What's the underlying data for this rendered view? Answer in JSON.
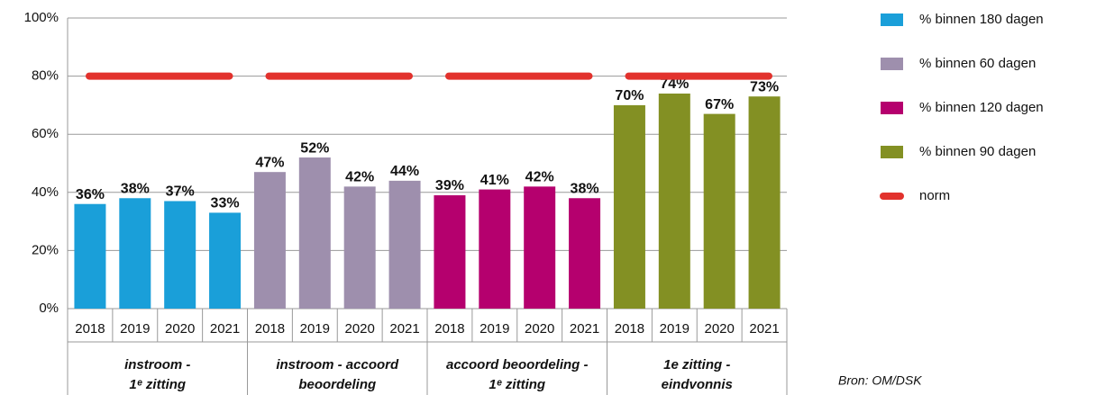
{
  "chart_data": {
    "type": "grouped_bar",
    "categories": [
      "2018",
      "2019",
      "2020",
      "2021"
    ],
    "series": [
      {
        "name": "% binnen 180 dagen",
        "color": "#1a9fd9",
        "group": [
          "instroom -",
          "1ᵉ zitting"
        ],
        "values": [
          36,
          38,
          37,
          33
        ],
        "value_labels": [
          "36%",
          "38%",
          "37%",
          "33%"
        ]
      },
      {
        "name": "% binnen 60 dagen",
        "color": "#9e8fad",
        "group": [
          "instroom - accoord",
          "beoordeling"
        ],
        "values": [
          47,
          52,
          42,
          44
        ],
        "value_labels": [
          "47%",
          "52%",
          "42%",
          "44%"
        ]
      },
      {
        "name": "% binnen 120 dagen",
        "color": "#b5006e",
        "group": [
          "accoord beoordeling -",
          "1ᵉ zitting"
        ],
        "values": [
          39,
          41,
          42,
          38
        ],
        "value_labels": [
          "39%",
          "41%",
          "42%",
          "38%"
        ]
      },
      {
        "name": "% binnen 90 dagen",
        "color": "#839023",
        "group": [
          "1e zitting -",
          "eindvonnis"
        ],
        "values": [
          70,
          74,
          67,
          73
        ],
        "value_labels": [
          "70%",
          "74%",
          "67%",
          "73%"
        ]
      }
    ],
    "norm": {
      "name": "norm",
      "color": "#e2322d",
      "values": [
        80,
        80,
        80,
        80
      ]
    },
    "ylim": [
      0,
      100
    ],
    "yticks": [
      {
        "value": 0,
        "label": "0%"
      },
      {
        "value": 20,
        "label": "20%"
      },
      {
        "value": 40,
        "label": "40%"
      },
      {
        "value": 60,
        "label": "60%"
      },
      {
        "value": 80,
        "label": "80%"
      },
      {
        "value": 100,
        "label": "100%"
      }
    ],
    "grid": true,
    "source": "Bron: OM/DSK"
  }
}
